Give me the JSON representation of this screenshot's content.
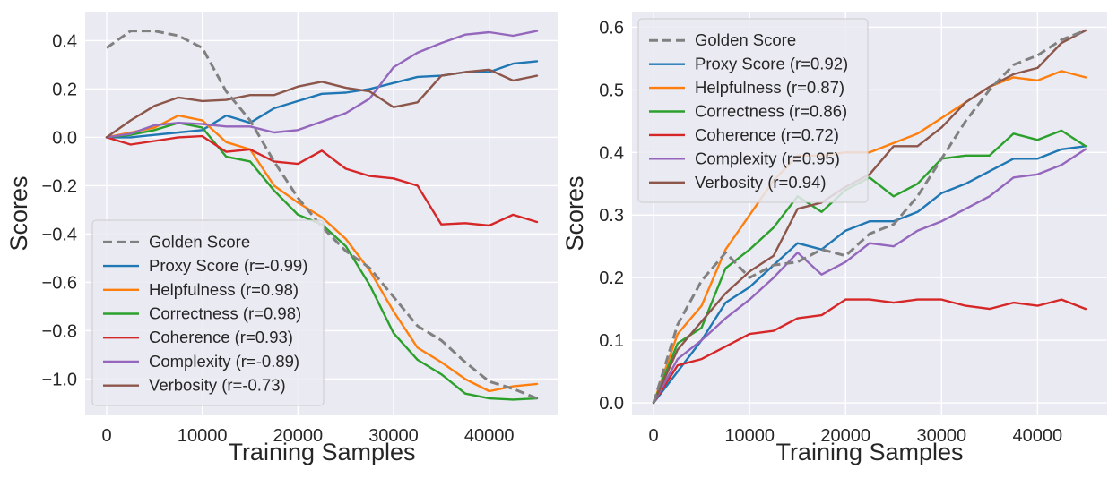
{
  "chart_data": [
    {
      "type": "line",
      "xlabel": "Training Samples",
      "ylabel": "Scores",
      "xlim": [
        -2250,
        47250
      ],
      "ylim": [
        -1.15,
        0.52
      ],
      "xticks": [
        0,
        10000,
        20000,
        30000,
        40000
      ],
      "xtick_labels": [
        "0",
        "10000",
        "20000",
        "30000",
        "40000"
      ],
      "yticks": [
        -1.0,
        -0.8,
        -0.6,
        -0.4,
        -0.2,
        0.0,
        0.2,
        0.4
      ],
      "ytick_labels": [
        "−1.0",
        "−0.8",
        "−0.6",
        "−0.4",
        "−0.2",
        "0.0",
        "0.2",
        "0.4"
      ],
      "grid": true,
      "legend_position": "lower-left",
      "x": [
        0,
        2500,
        5000,
        7500,
        10000,
        12500,
        15000,
        17500,
        20000,
        22500,
        25000,
        27500,
        30000,
        32500,
        35000,
        37500,
        40000,
        42500,
        45000
      ],
      "series": [
        {
          "name": "Golden Score",
          "color": "#808080",
          "dash": true,
          "values": [
            0.37,
            0.44,
            0.44,
            0.42,
            0.37,
            0.19,
            0.07,
            -0.1,
            -0.25,
            -0.37,
            -0.47,
            -0.54,
            -0.66,
            -0.78,
            -0.84,
            -0.93,
            -1.01,
            -1.04,
            -1.08
          ]
        },
        {
          "name": "Proxy Score (r=-0.99)",
          "color": "#1f77b4",
          "values": [
            0.0,
            0.0,
            0.01,
            0.02,
            0.03,
            0.09,
            0.06,
            0.12,
            0.15,
            0.18,
            0.185,
            0.2,
            0.225,
            0.25,
            0.255,
            0.27,
            0.27,
            0.305,
            0.315
          ]
        },
        {
          "name": "Helpfulness (r=0.98)",
          "color": "#ff7f0e",
          "values": [
            0.0,
            0.02,
            0.04,
            0.09,
            0.07,
            -0.02,
            -0.05,
            -0.2,
            -0.27,
            -0.33,
            -0.42,
            -0.55,
            -0.72,
            -0.87,
            -0.93,
            -1.0,
            -1.05,
            -1.03,
            -1.02
          ]
        },
        {
          "name": "Correctness (r=0.98)",
          "color": "#2ca02c",
          "values": [
            0.0,
            0.01,
            0.03,
            0.06,
            0.04,
            -0.08,
            -0.1,
            -0.22,
            -0.32,
            -0.36,
            -0.45,
            -0.61,
            -0.81,
            -0.92,
            -0.98,
            -1.06,
            -1.08,
            -1.085,
            -1.08
          ]
        },
        {
          "name": "Coherence (r=0.93)",
          "color": "#d62728",
          "values": [
            0.0,
            -0.03,
            -0.015,
            0.0,
            0.005,
            -0.06,
            -0.05,
            -0.1,
            -0.11,
            -0.055,
            -0.13,
            -0.16,
            -0.17,
            -0.2,
            -0.36,
            -0.355,
            -0.365,
            -0.32,
            -0.35
          ]
        },
        {
          "name": "Complexity (r=-0.89)",
          "color": "#9467bd",
          "values": [
            0.0,
            0.015,
            0.05,
            0.06,
            0.055,
            0.045,
            0.045,
            0.02,
            0.03,
            0.065,
            0.1,
            0.16,
            0.29,
            0.35,
            0.39,
            0.425,
            0.435,
            0.42,
            0.44
          ]
        },
        {
          "name": "Verbosity (r=-0.73)",
          "color": "#8c564b",
          "values": [
            0.0,
            0.07,
            0.13,
            0.165,
            0.15,
            0.155,
            0.175,
            0.175,
            0.21,
            0.23,
            0.205,
            0.19,
            0.125,
            0.145,
            0.255,
            0.27,
            0.28,
            0.235,
            0.255
          ]
        }
      ]
    },
    {
      "type": "line",
      "xlabel": "Training Samples",
      "ylabel": "Scores",
      "xlim": [
        -2250,
        47250
      ],
      "ylim": [
        -0.02,
        0.625
      ],
      "xticks": [
        0,
        10000,
        20000,
        30000,
        40000
      ],
      "xtick_labels": [
        "0",
        "10000",
        "20000",
        "30000",
        "40000"
      ],
      "yticks": [
        0.0,
        0.1,
        0.2,
        0.3,
        0.4,
        0.5,
        0.6
      ],
      "ytick_labels": [
        "0.0",
        "0.1",
        "0.2",
        "0.3",
        "0.4",
        "0.5",
        "0.6"
      ],
      "grid": true,
      "legend_position": "upper-left",
      "x": [
        0,
        2500,
        5000,
        7500,
        10000,
        12500,
        15000,
        17500,
        20000,
        22500,
        25000,
        27500,
        30000,
        32500,
        35000,
        37500,
        40000,
        42500,
        45000
      ],
      "series": [
        {
          "name": "Golden Score",
          "color": "#808080",
          "dash": true,
          "values": [
            0.0,
            0.125,
            0.195,
            0.24,
            0.2,
            0.22,
            0.225,
            0.245,
            0.235,
            0.27,
            0.285,
            0.33,
            0.39,
            0.45,
            0.5,
            0.54,
            0.555,
            0.58,
            0.595
          ]
        },
        {
          "name": "Proxy Score (r=0.92)",
          "color": "#1f77b4",
          "values": [
            0.0,
            0.05,
            0.1,
            0.16,
            0.185,
            0.22,
            0.255,
            0.245,
            0.275,
            0.29,
            0.29,
            0.305,
            0.335,
            0.35,
            0.37,
            0.39,
            0.39,
            0.405,
            0.41
          ]
        },
        {
          "name": "Helpfulness (r=0.87)",
          "color": "#ff7f0e",
          "values": [
            0.0,
            0.11,
            0.155,
            0.245,
            0.3,
            0.355,
            0.395,
            0.395,
            0.4,
            0.4,
            0.415,
            0.43,
            0.455,
            0.48,
            0.505,
            0.52,
            0.515,
            0.53,
            0.52
          ]
        },
        {
          "name": "Correctness (r=0.86)",
          "color": "#2ca02c",
          "values": [
            0.0,
            0.095,
            0.12,
            0.215,
            0.245,
            0.28,
            0.33,
            0.305,
            0.34,
            0.36,
            0.33,
            0.35,
            0.39,
            0.395,
            0.395,
            0.43,
            0.42,
            0.435,
            0.41
          ]
        },
        {
          "name": "Coherence (r=0.72)",
          "color": "#d62728",
          "values": [
            0.0,
            0.06,
            0.07,
            0.09,
            0.11,
            0.115,
            0.135,
            0.14,
            0.165,
            0.165,
            0.16,
            0.165,
            0.165,
            0.155,
            0.15,
            0.16,
            0.155,
            0.165,
            0.15
          ]
        },
        {
          "name": "Complexity (r=0.95)",
          "color": "#9467bd",
          "values": [
            0.0,
            0.07,
            0.1,
            0.135,
            0.165,
            0.2,
            0.24,
            0.205,
            0.225,
            0.255,
            0.25,
            0.275,
            0.29,
            0.31,
            0.33,
            0.36,
            0.365,
            0.38,
            0.405
          ]
        },
        {
          "name": "Verbosity (r=0.94)",
          "color": "#8c564b",
          "values": [
            0.0,
            0.085,
            0.13,
            0.175,
            0.21,
            0.235,
            0.31,
            0.32,
            0.345,
            0.365,
            0.41,
            0.41,
            0.44,
            0.48,
            0.505,
            0.525,
            0.535,
            0.575,
            0.595
          ]
        }
      ]
    }
  ]
}
